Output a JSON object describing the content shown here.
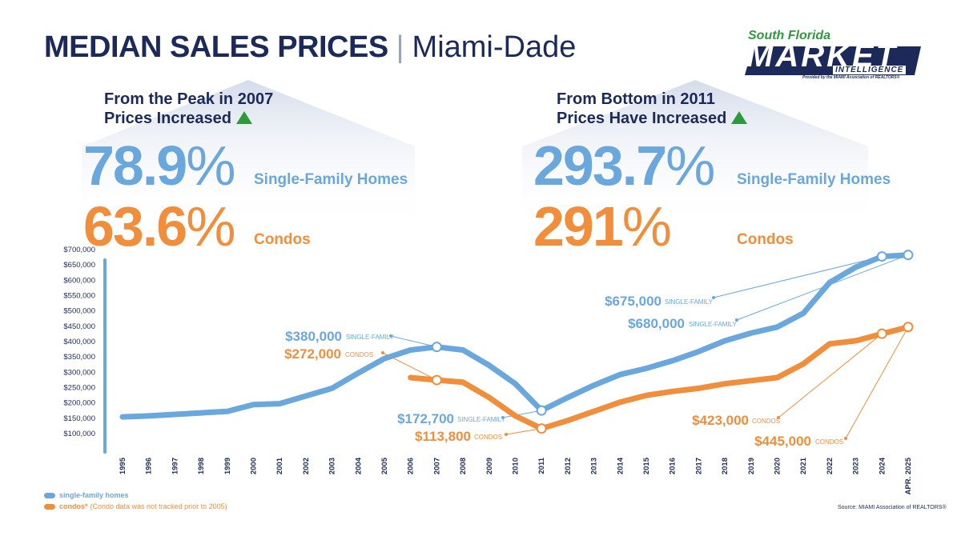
{
  "header": {
    "title_bold": "MEDIAN SALES PRICES",
    "separator": "|",
    "title_region": "Miami-Dade"
  },
  "logo": {
    "line1": "South Florida",
    "line2": "MARKET",
    "line3": "INTELLIGENCE",
    "tagline": "Provided by the MIAMI Association of REALTORS®"
  },
  "panels": [
    {
      "heading_line1": "From the Peak in 2007",
      "heading_line2": "Prices Increased",
      "sf_value": "78.9",
      "condo_value": "63.6",
      "percent_sign": "%",
      "sf_label": "Single-Family Homes",
      "condo_label": "Condos",
      "indicator_icon": "triangle-up-icon"
    },
    {
      "heading_line1": "From Bottom in 2011",
      "heading_line2": "Prices Have Increased",
      "sf_value": "293.7",
      "condo_value": "291",
      "percent_sign": "%",
      "sf_label": "Single-Family Homes",
      "condo_label": "Condos",
      "indicator_icon": "triangle-up-icon"
    }
  ],
  "colors": {
    "navy": "#1c2a59",
    "single_family": "#6aa7dd",
    "condos": "#f08e3c",
    "green": "#2e9a3e"
  },
  "chart_data": {
    "type": "line",
    "x": [
      "1995",
      "1996",
      "1997",
      "1998",
      "1999",
      "2000",
      "2001",
      "2002",
      "2003",
      "2004",
      "2005",
      "2006",
      "2007",
      "2008",
      "2009",
      "2010",
      "2011",
      "2012",
      "2013",
      "2014",
      "2015",
      "2016",
      "2017",
      "2018",
      "2019",
      "2020",
      "2021",
      "2022",
      "2023",
      "2024",
      "APR. 2025"
    ],
    "yticks": [
      "$100,000",
      "$150,000",
      "$200,000",
      "$250,000",
      "$300,000",
      "$350,000",
      "$400,000",
      "$450,000",
      "$500,000",
      "$550,000",
      "$600,000",
      "$650,000",
      "$700,000"
    ],
    "ylim": [
      100000,
      700000
    ],
    "series": [
      {
        "name": "single-family homes",
        "color": "#6aa7dd",
        "values": [
          152000,
          155000,
          160000,
          165000,
          170000,
          192000,
          195000,
          220000,
          245000,
          295000,
          342000,
          370000,
          380000,
          370000,
          320000,
          260000,
          172700,
          215000,
          255000,
          290000,
          310000,
          335000,
          365000,
          400000,
          425000,
          445000,
          490000,
          590000,
          640000,
          675000,
          680000
        ]
      },
      {
        "name": "condos*",
        "color": "#f08e3c",
        "values": [
          null,
          null,
          null,
          null,
          null,
          null,
          null,
          null,
          null,
          null,
          null,
          280000,
          272000,
          265000,
          215000,
          155000,
          113800,
          140000,
          170000,
          200000,
          222000,
          235000,
          245000,
          260000,
          270000,
          280000,
          325000,
          390000,
          400000,
          423000,
          445000
        ]
      }
    ],
    "markers": [
      {
        "series": 0,
        "index": 12
      },
      {
        "series": 1,
        "index": 12
      },
      {
        "series": 0,
        "index": 16
      },
      {
        "series": 1,
        "index": 16
      },
      {
        "series": 0,
        "index": 29
      },
      {
        "series": 0,
        "index": 30
      },
      {
        "series": 1,
        "index": 29
      },
      {
        "series": 1,
        "index": 30
      }
    ],
    "annotations": [
      {
        "value": "$380,000",
        "tag": "SINGLE-FAMILY",
        "series": 0,
        "index": 12
      },
      {
        "value": "$272,000",
        "tag": "CONDOS",
        "series": 1,
        "index": 12
      },
      {
        "value": "$172,700",
        "tag": "SINGLE-FAMILY",
        "series": 0,
        "index": 16
      },
      {
        "value": "$113,800",
        "tag": "CONDOS",
        "series": 1,
        "index": 16
      },
      {
        "value": "$675,000",
        "tag": "SINGLE-FAMILY",
        "series": 0,
        "index": 29
      },
      {
        "value": "$680,000",
        "tag": "SINGLE-FAMILY",
        "series": 0,
        "index": 30
      },
      {
        "value": "$423,000",
        "tag": "CONDOS",
        "series": 1,
        "index": 29
      },
      {
        "value": "$445,000",
        "tag": "CONDOS",
        "series": 1,
        "index": 30
      }
    ]
  },
  "legend": {
    "single_family": "single-family homes",
    "condos_main": "condos*",
    "condos_note": "(Condo data was not tracked prior to 2005)"
  },
  "source": {
    "prefix": "Source:",
    "name": "MIAMI Association of REALTORS®"
  }
}
